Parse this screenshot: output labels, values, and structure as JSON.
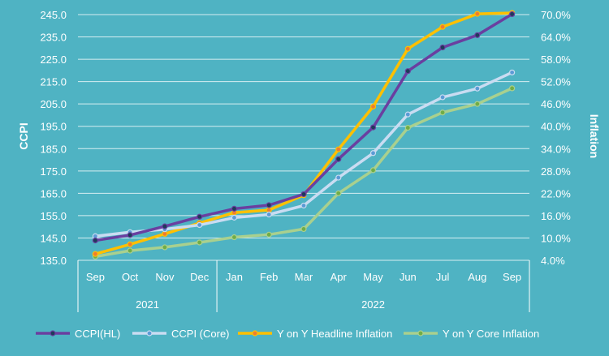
{
  "chart_data": {
    "type": "line",
    "categories": [
      "Sep",
      "Oct",
      "Nov",
      "Dec",
      "Jan",
      "Feb",
      "Mar",
      "Apr",
      "May",
      "Jun",
      "Jul",
      "Aug",
      "Sep"
    ],
    "year_groups": [
      {
        "label": "2021",
        "start": 0,
        "end": 3
      },
      {
        "label": "2022",
        "start": 4,
        "end": 12
      }
    ],
    "ylabel": "CCPI",
    "y2label": "Inflation",
    "ylim": [
      135,
      245
    ],
    "y_ticks": [
      "135.0",
      "145.0",
      "155.0",
      "165.0",
      "175.0",
      "185.0",
      "195.0",
      "205.0",
      "215.0",
      "225.0",
      "235.0",
      "245.0"
    ],
    "y2lim": [
      4,
      70
    ],
    "y2_ticks": [
      "4.0%",
      "10.0%",
      "16.0%",
      "22.0%",
      "28.0%",
      "34.0%",
      "40.0%",
      "46.0%",
      "52.0%",
      "58.0%",
      "64.0%",
      "70.0%"
    ],
    "grid": true,
    "legend_position": "bottom",
    "series": [
      {
        "name": "CCPI(HL)",
        "axis": "left",
        "color": "#6a3fa0",
        "marker_color": "#1f3a5a",
        "values": [
          143.9,
          146.3,
          150.2,
          154.5,
          158.1,
          159.7,
          164.6,
          180.3,
          194.5,
          219.7,
          230.3,
          235.8,
          245.2
        ]
      },
      {
        "name": "CCPI (Core)",
        "axis": "left",
        "color": "#c9dcf2",
        "marker_color": "#5b9bd5",
        "values": [
          145.8,
          147.6,
          148.9,
          150.8,
          154.1,
          155.5,
          159.5,
          172.0,
          183.0,
          200.3,
          208.0,
          211.9,
          219.1
        ]
      },
      {
        "name": "Y on Y Headline Inflation",
        "axis": "right",
        "color": "#ffc000",
        "marker_color": "#ed7d31",
        "values": [
          5.7,
          8.3,
          11.1,
          14.0,
          16.8,
          17.5,
          21.5,
          33.8,
          45.3,
          60.8,
          66.7,
          70.2,
          73.7
        ]
      },
      {
        "name": "Y on Y Core Inflation",
        "axis": "right",
        "color": "#a9d08e",
        "marker_color": "#70ad47",
        "values": [
          5.0,
          6.6,
          7.5,
          8.8,
          10.2,
          10.9,
          12.4,
          22.0,
          28.2,
          39.6,
          43.7,
          46.0,
          50.2
        ]
      }
    ]
  }
}
